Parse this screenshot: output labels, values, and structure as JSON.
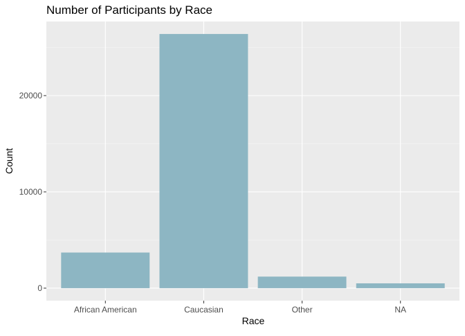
{
  "colors": {
    "panel": "#EBEBEB",
    "grid_major": "#FFFFFF",
    "grid_minor": "#F5F5F5",
    "bar_fill": "#8DB6C3",
    "tick": "#333333"
  },
  "chart_data": {
    "type": "bar",
    "title": "Number of Participants by Race",
    "xlabel": "Race",
    "ylabel": "Count",
    "categories": [
      "African American",
      "Caucasian",
      "Other",
      "NA"
    ],
    "values": [
      3700,
      26400,
      1200,
      500
    ],
    "ylim": [
      -1300,
      27700
    ],
    "yticks": [
      0,
      10000,
      20000
    ],
    "ytick_labels": [
      "0",
      "10000",
      "20000"
    ],
    "grid": true,
    "legend": "none"
  }
}
